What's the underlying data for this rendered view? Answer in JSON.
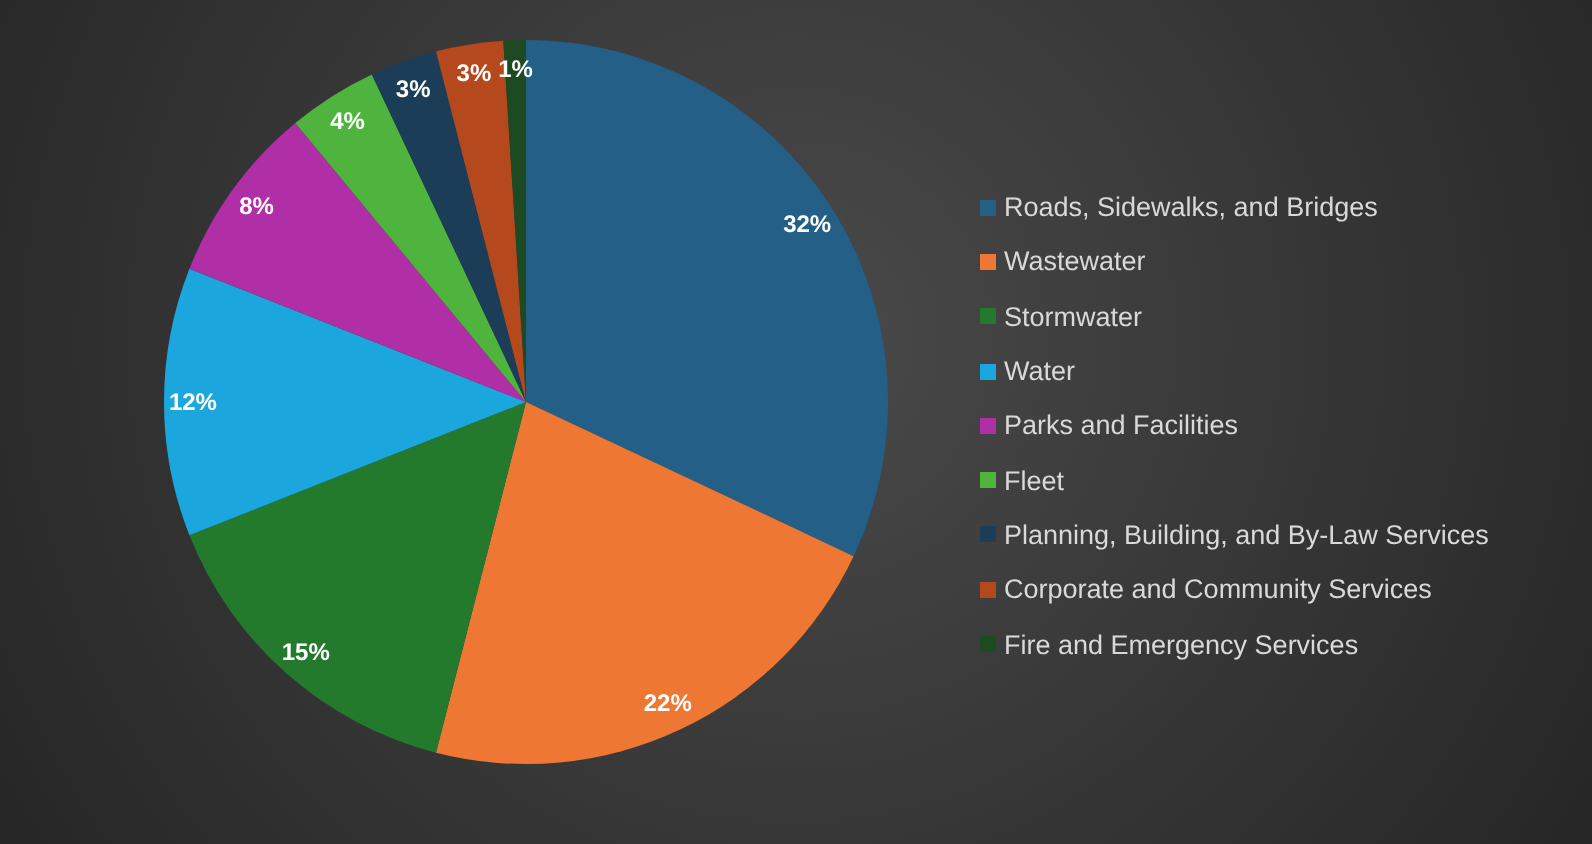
{
  "chart_data": {
    "type": "pie",
    "categories": [
      "Roads, Sidewalks, and Bridges",
      "Wastewater",
      "Stormwater",
      "Water",
      "Parks and Facilities",
      "Fleet",
      "Planning, Building, and By-Law Services",
      "Corporate and Community Services",
      "Fire and Emergency Services"
    ],
    "values": [
      32,
      22,
      15,
      12,
      8,
      4,
      3,
      3,
      1
    ],
    "value_labels": [
      "32%",
      "22%",
      "15%",
      "12%",
      "8%",
      "4%",
      "3%",
      "3%",
      "1%"
    ],
    "colors": [
      "#245f87",
      "#ef7734",
      "#237a2d",
      "#1ca6de",
      "#b02ea6",
      "#4fb43e",
      "#1c3d58",
      "#b5491d",
      "#1d4a22"
    ],
    "legend": "right"
  }
}
